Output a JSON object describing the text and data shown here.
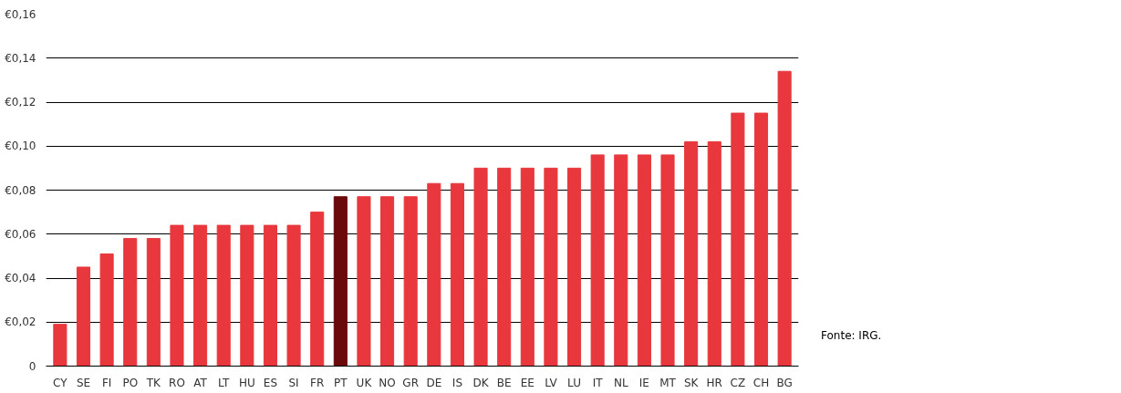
{
  "chart_data": {
    "type": "bar",
    "categories": [
      "CY",
      "SE",
      "FI",
      "PO",
      "TK",
      "RO",
      "AT",
      "LT",
      "HU",
      "ES",
      "SI",
      "FR",
      "PT",
      "UK",
      "NO",
      "GR",
      "DE",
      "IS",
      "DK",
      "BE",
      "EE",
      "LV",
      "LU",
      "IT",
      "NL",
      "IE",
      "MT",
      "SK",
      "HR",
      "CZ",
      "CH",
      "BG"
    ],
    "values": [
      0.019,
      0.045,
      0.051,
      0.058,
      0.058,
      0.064,
      0.064,
      0.064,
      0.064,
      0.064,
      0.064,
      0.07,
      0.077,
      0.077,
      0.077,
      0.077,
      0.083,
      0.083,
      0.09,
      0.09,
      0.09,
      0.09,
      0.09,
      0.096,
      0.096,
      0.096,
      0.096,
      0.102,
      0.102,
      0.115,
      0.115,
      0.134
    ],
    "colors": [
      "#e8383d",
      "#e8383d",
      "#e8383d",
      "#e8383d",
      "#e8383d",
      "#e8383d",
      "#e8383d",
      "#e8383d",
      "#e8383d",
      "#e8383d",
      "#e8383d",
      "#e8383d",
      "#6b0a0a",
      "#e8383d",
      "#e8383d",
      "#e8383d",
      "#e8383d",
      "#e8383d",
      "#e8383d",
      "#e8383d",
      "#e8383d",
      "#e8383d",
      "#e8383d",
      "#e8383d",
      "#e8383d",
      "#e8383d",
      "#e8383d",
      "#e8383d",
      "#e8383d",
      "#e8383d",
      "#e8383d",
      "#e8383d"
    ],
    "ylim": [
      0,
      0.16
    ],
    "yticks": [
      {
        "value": 0,
        "label": "0"
      },
      {
        "value": 0.02,
        "label": "€0,02"
      },
      {
        "value": 0.04,
        "label": "€0,04"
      },
      {
        "value": 0.06,
        "label": "€0,06"
      },
      {
        "value": 0.08,
        "label": "€0,08"
      },
      {
        "value": 0.1,
        "label": "€0,10"
      },
      {
        "value": 0.12,
        "label": "€0,12"
      },
      {
        "value": 0.14,
        "label": "€0,14"
      },
      {
        "value": 0.16,
        "label": "€0,16"
      }
    ],
    "grid": "y",
    "annotations": [
      "Fonte: IRG."
    ]
  }
}
